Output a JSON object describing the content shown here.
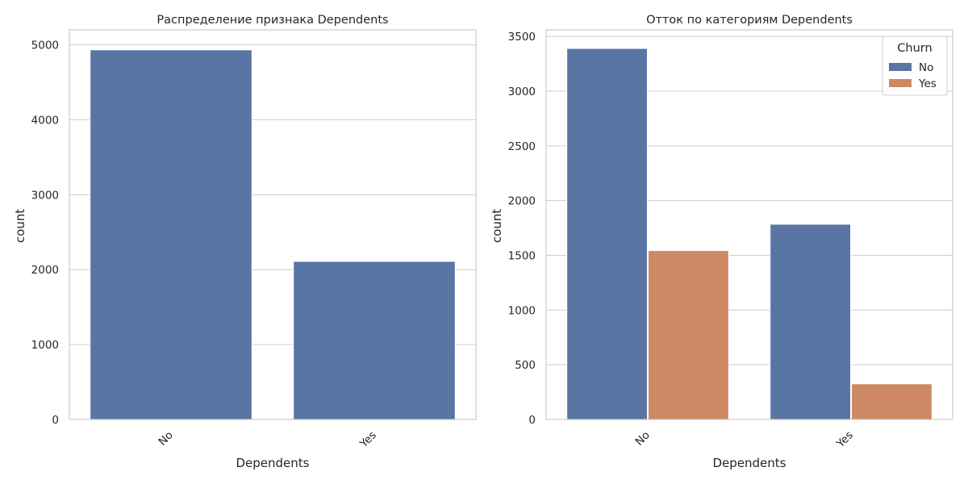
{
  "chart_data": [
    {
      "type": "bar",
      "title": "Распределение признака Dependents",
      "xlabel": "Dependents",
      "ylabel": "count",
      "categories": [
        "No",
        "Yes"
      ],
      "series": [
        {
          "values": [
            4933,
            2110
          ],
          "color": "#5875a4"
        }
      ],
      "ylim": [
        0,
        5200
      ],
      "yticks": [
        0,
        1000,
        2000,
        3000,
        4000,
        5000
      ],
      "grid": true,
      "legend": null
    },
    {
      "type": "bar",
      "title": "Отток по категориям Dependents",
      "xlabel": "Dependents",
      "ylabel": "count",
      "categories": [
        "No",
        "Yes"
      ],
      "series": [
        {
          "name": "No",
          "values": [
            3390,
            1784
          ],
          "color": "#5875a4"
        },
        {
          "name": "Yes",
          "values": [
            1543,
            326
          ],
          "color": "#cc8963"
        }
      ],
      "ylim": [
        0,
        3560
      ],
      "yticks": [
        0,
        500,
        1000,
        1500,
        2000,
        2500,
        3000,
        3500
      ],
      "grid": true,
      "legend": {
        "title": "Churn",
        "placement": "top-right"
      }
    }
  ]
}
